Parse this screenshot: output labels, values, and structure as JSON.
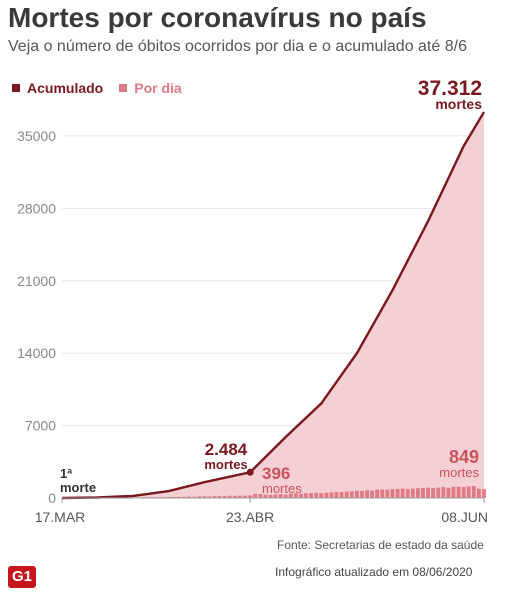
{
  "header": {
    "title": "Mortes por coronavírus no país",
    "subtitle": "Veja o número de óbitos ocorridos por dia e o acumulado até 8/6"
  },
  "footer": {
    "source": "Fonte: Secretarias de estado da saúde",
    "updated": "Infográfico atualizado em 08/06/2020",
    "logo": "G1"
  },
  "colors": {
    "accumulated": "#7a1820",
    "daily": "#e07a84",
    "area": "#f4cfd3",
    "grid": "#e6e6e6"
  },
  "chart_data": {
    "type": "area",
    "x_axis_ticks": [
      "17.MAR",
      "23.ABR",
      "08.JUN"
    ],
    "ylim": [
      0,
      37312
    ],
    "yticks": [
      0,
      7000,
      14000,
      21000,
      28000,
      35000
    ],
    "grid": true,
    "legend_position": "top-left",
    "series": [
      {
        "name": "Acumulado",
        "type": "line-area",
        "points": [
          [
            "17.MAR",
            1
          ],
          [
            "24.MAR",
            46
          ],
          [
            "31.MAR",
            201
          ],
          [
            "07.ABR",
            667
          ],
          [
            "14.ABR",
            1532
          ],
          [
            "23.ABR",
            2484
          ],
          [
            "30.ABR",
            5901
          ],
          [
            "07.MAI",
            9146
          ],
          [
            "14.MAI",
            13993
          ],
          [
            "21.MAI",
            20082
          ],
          [
            "28.MAI",
            26764
          ],
          [
            "04.JUN",
            34021
          ],
          [
            "08.JUN",
            37312
          ]
        ]
      },
      {
        "name": "Por dia",
        "type": "bar",
        "values": [
          1,
          2,
          3,
          4,
          6,
          5,
          10,
          12,
          9,
          15,
          18,
          22,
          30,
          28,
          40,
          45,
          60,
          55,
          70,
          68,
          90,
          105,
          95,
          120,
          115,
          140,
          130,
          150,
          165,
          155,
          180,
          200,
          190,
          210,
          217,
          230,
          220,
          250,
          396,
          380,
          320,
          300,
          350,
          360,
          330,
          420,
          450,
          410,
          460,
          480,
          500,
          470,
          520,
          540,
          600,
          580,
          620,
          650,
          700,
          690,
          750,
          720,
          800,
          820,
          780,
          850,
          880,
          900,
          860,
          920,
          950,
          980,
          1000,
          960,
          1010,
          1050,
          990,
          1080,
          1100,
          1060,
          1120,
          1150,
          900,
          849
        ]
      }
    ],
    "annotations": [
      {
        "value_label": "1ª",
        "unit_label": "morte",
        "date": "17.MAR"
      },
      {
        "value_label": "2.484",
        "unit_label": "mortes",
        "date": "23.ABR"
      },
      {
        "value_label": "396",
        "unit_label": "mortes",
        "date": "24.ABR"
      },
      {
        "value_label": "849",
        "unit_label": "mortes",
        "date": "08.JUN"
      },
      {
        "value_label": "37.312",
        "unit_label": "mortes",
        "date": "08.JUN"
      }
    ]
  }
}
